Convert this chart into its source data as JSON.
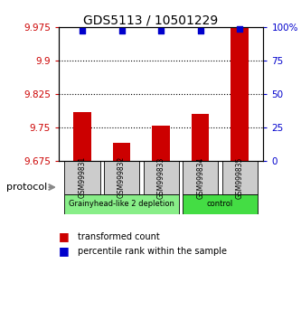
{
  "title": "GDS5113 / 10501229",
  "samples": [
    "GSM999831",
    "GSM999832",
    "GSM999833",
    "GSM999834",
    "GSM999835"
  ],
  "bar_values": [
    9.785,
    9.715,
    9.755,
    9.78,
    9.975
  ],
  "percentile_values": [
    97.5,
    97.5,
    97.5,
    97.5,
    98.5
  ],
  "ylim_left": [
    9.675,
    9.975
  ],
  "ylim_right": [
    0,
    100
  ],
  "yticks_left": [
    9.675,
    9.75,
    9.825,
    9.9,
    9.975
  ],
  "yticks_right": [
    0,
    25,
    50,
    75,
    100
  ],
  "ytick_labels_left": [
    "9.675",
    "9.75",
    "9.825",
    "9.9",
    "9.975"
  ],
  "ytick_labels_right": [
    "0",
    "25",
    "50",
    "75",
    "100%"
  ],
  "bar_color": "#cc0000",
  "scatter_color": "#0000cc",
  "bar_bottom": 9.675,
  "groups": [
    {
      "label": "Grainyhead-like 2 depletion",
      "indices": [
        0,
        1,
        2
      ],
      "color": "#88ee88"
    },
    {
      "label": "control",
      "indices": [
        3,
        4
      ],
      "color": "#44dd44"
    }
  ],
  "protocol_label": "protocol",
  "legend_bar_label": "transformed count",
  "legend_scatter_label": "percentile rank within the sample",
  "grid_yticks": [
    9.75,
    9.825,
    9.9
  ],
  "axis_bg": "#ffffff",
  "plot_bg": "#ffffff",
  "cell_bg": "#cccccc",
  "cell_border": "#000000"
}
